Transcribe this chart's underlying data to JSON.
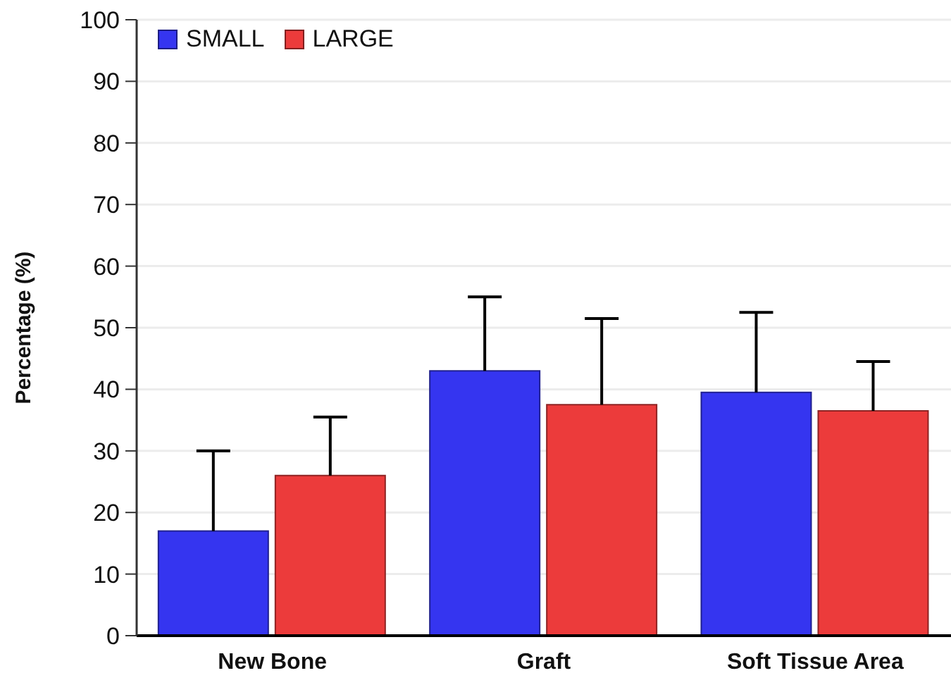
{
  "chart_data": {
    "type": "bar",
    "ylabel": "Percentage (%)",
    "categories": [
      "New Bone",
      "Graft",
      "Soft Tissue Area"
    ],
    "series": [
      {
        "name": "SMALL",
        "color": "#3535f0",
        "values": [
          17,
          43,
          39.5
        ],
        "errors": [
          [
            17,
            30
          ],
          [
            43,
            55
          ],
          [
            39.5,
            52.5
          ]
        ]
      },
      {
        "name": "LARGE",
        "color": "#ec3b3b",
        "values": [
          26,
          37.5,
          36.5
        ],
        "errors": [
          [
            26,
            35.5
          ],
          [
            37.5,
            51.5
          ],
          [
            36.5,
            44.5
          ]
        ]
      }
    ],
    "ylim": [
      0,
      100
    ],
    "yticks": [
      0,
      10,
      20,
      30,
      40,
      50,
      60,
      70,
      80,
      90,
      100
    ],
    "grid": "y",
    "legend": "top left"
  }
}
